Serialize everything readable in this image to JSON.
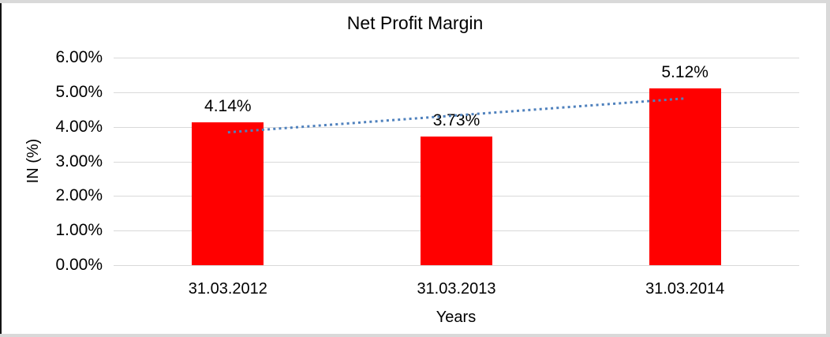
{
  "chart_data": {
    "type": "bar",
    "title": "Net Profit Margin",
    "categories": [
      "31.03.2012",
      "31.03.2013",
      "31.03.2014"
    ],
    "values": [
      4.14,
      3.73,
      5.12
    ],
    "data_labels": [
      "4.14%",
      "3.73%",
      "5.12%"
    ],
    "xlabel": "Years",
    "ylabel": "IN (%)",
    "ylim": [
      0,
      6
    ],
    "ytick_labels": [
      "0.00%",
      "1.00%",
      "2.00%",
      "3.00%",
      "4.00%",
      "5.00%",
      "6.00%"
    ],
    "grid": true,
    "legend": "none",
    "trendline": {
      "type": "linear",
      "style": "dotted"
    },
    "colors": {
      "bar": "#ff0000",
      "trendline": "#4f81bd",
      "gridline": "#d9d9d9",
      "text": "#000000",
      "frame": "#d9d9d9",
      "frame_left": "#141414"
    }
  }
}
